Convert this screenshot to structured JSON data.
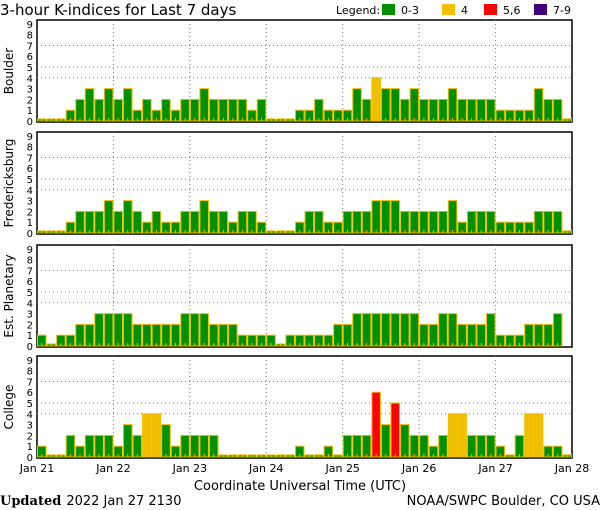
{
  "chart_data": {
    "type": "bar",
    "title": "3-hour K-indices for Last 7 days",
    "legend": {
      "label": "Legend:",
      "placement": "top-right",
      "items": [
        {
          "label": "0-3",
          "color": "#009000"
        },
        {
          "label": "4",
          "color": "#f0c000"
        },
        {
          "label": "5,6",
          "color": "#ff0000"
        },
        {
          "label": "7-9",
          "color": "#400080"
        }
      ]
    },
    "xlabel": "Coordinate Universal Time (UTC)",
    "x_tick_labels": [
      "Jan 21",
      "Jan 22",
      "Jan 23",
      "Jan 24",
      "Jan 25",
      "Jan 26",
      "Jan 27",
      "Jan 28"
    ],
    "y_tick_labels": [
      "0",
      "1",
      "2",
      "3",
      "4",
      "5",
      "6",
      "7",
      "8",
      "9"
    ],
    "ylim": [
      0,
      9
    ],
    "grid": {
      "horizontal_at": [
        4,
        5,
        7
      ],
      "vertical_at_days": true
    },
    "bar_border_color": "#f0c000",
    "interval_hours": 3,
    "panels": [
      {
        "name": "Boulder",
        "values": [
          0,
          0,
          0,
          1,
          2,
          3,
          2,
          3,
          2,
          3,
          1,
          2,
          1,
          2,
          1,
          2,
          2,
          3,
          2,
          2,
          2,
          2,
          1,
          2,
          0,
          0,
          0,
          1,
          1,
          2,
          1,
          1,
          1,
          3,
          2,
          4,
          3,
          3,
          2,
          3,
          2,
          2,
          2,
          3,
          2,
          2,
          2,
          2,
          1,
          1,
          1,
          1,
          3,
          2,
          2,
          0
        ]
      },
      {
        "name": "Fredericksburg",
        "values": [
          0,
          0,
          0,
          1,
          2,
          2,
          2,
          3,
          2,
          3,
          2,
          1,
          2,
          1,
          1,
          2,
          2,
          3,
          2,
          2,
          1,
          2,
          2,
          1,
          0,
          0,
          0,
          1,
          2,
          2,
          1,
          1,
          2,
          2,
          2,
          3,
          3,
          3,
          2,
          2,
          2,
          2,
          2,
          3,
          1,
          2,
          2,
          2,
          1,
          1,
          1,
          1,
          2,
          2,
          2,
          0
        ]
      },
      {
        "name": "Est. Planetary",
        "values": [
          1,
          0,
          1,
          1,
          2,
          2,
          3,
          3,
          3,
          3,
          2,
          2,
          2,
          2,
          2,
          3,
          3,
          3,
          2,
          2,
          2,
          1,
          1,
          1,
          1,
          0,
          1,
          1,
          1,
          1,
          1,
          2,
          2,
          3,
          3,
          3,
          3,
          3,
          3,
          3,
          2,
          2,
          3,
          3,
          2,
          2,
          2,
          3,
          1,
          1,
          1,
          2,
          2,
          2,
          3,
          null
        ]
      },
      {
        "name": "College",
        "values": [
          1,
          0,
          0,
          2,
          1,
          2,
          2,
          2,
          1,
          3,
          2,
          4,
          4,
          3,
          1,
          2,
          2,
          2,
          2,
          0,
          0,
          0,
          0,
          0,
          0,
          0,
          0,
          1,
          0,
          0,
          1,
          0,
          2,
          2,
          2,
          6,
          3,
          5,
          3,
          2,
          2,
          1,
          2,
          4,
          4,
          2,
          2,
          2,
          1,
          0,
          2,
          4,
          4,
          1,
          1,
          0
        ]
      }
    ]
  },
  "footer": {
    "updated_label": "Updated",
    "updated_value": "2022 Jan 27 2130",
    "source": "NOAA/SWPC Boulder, CO USA"
  }
}
